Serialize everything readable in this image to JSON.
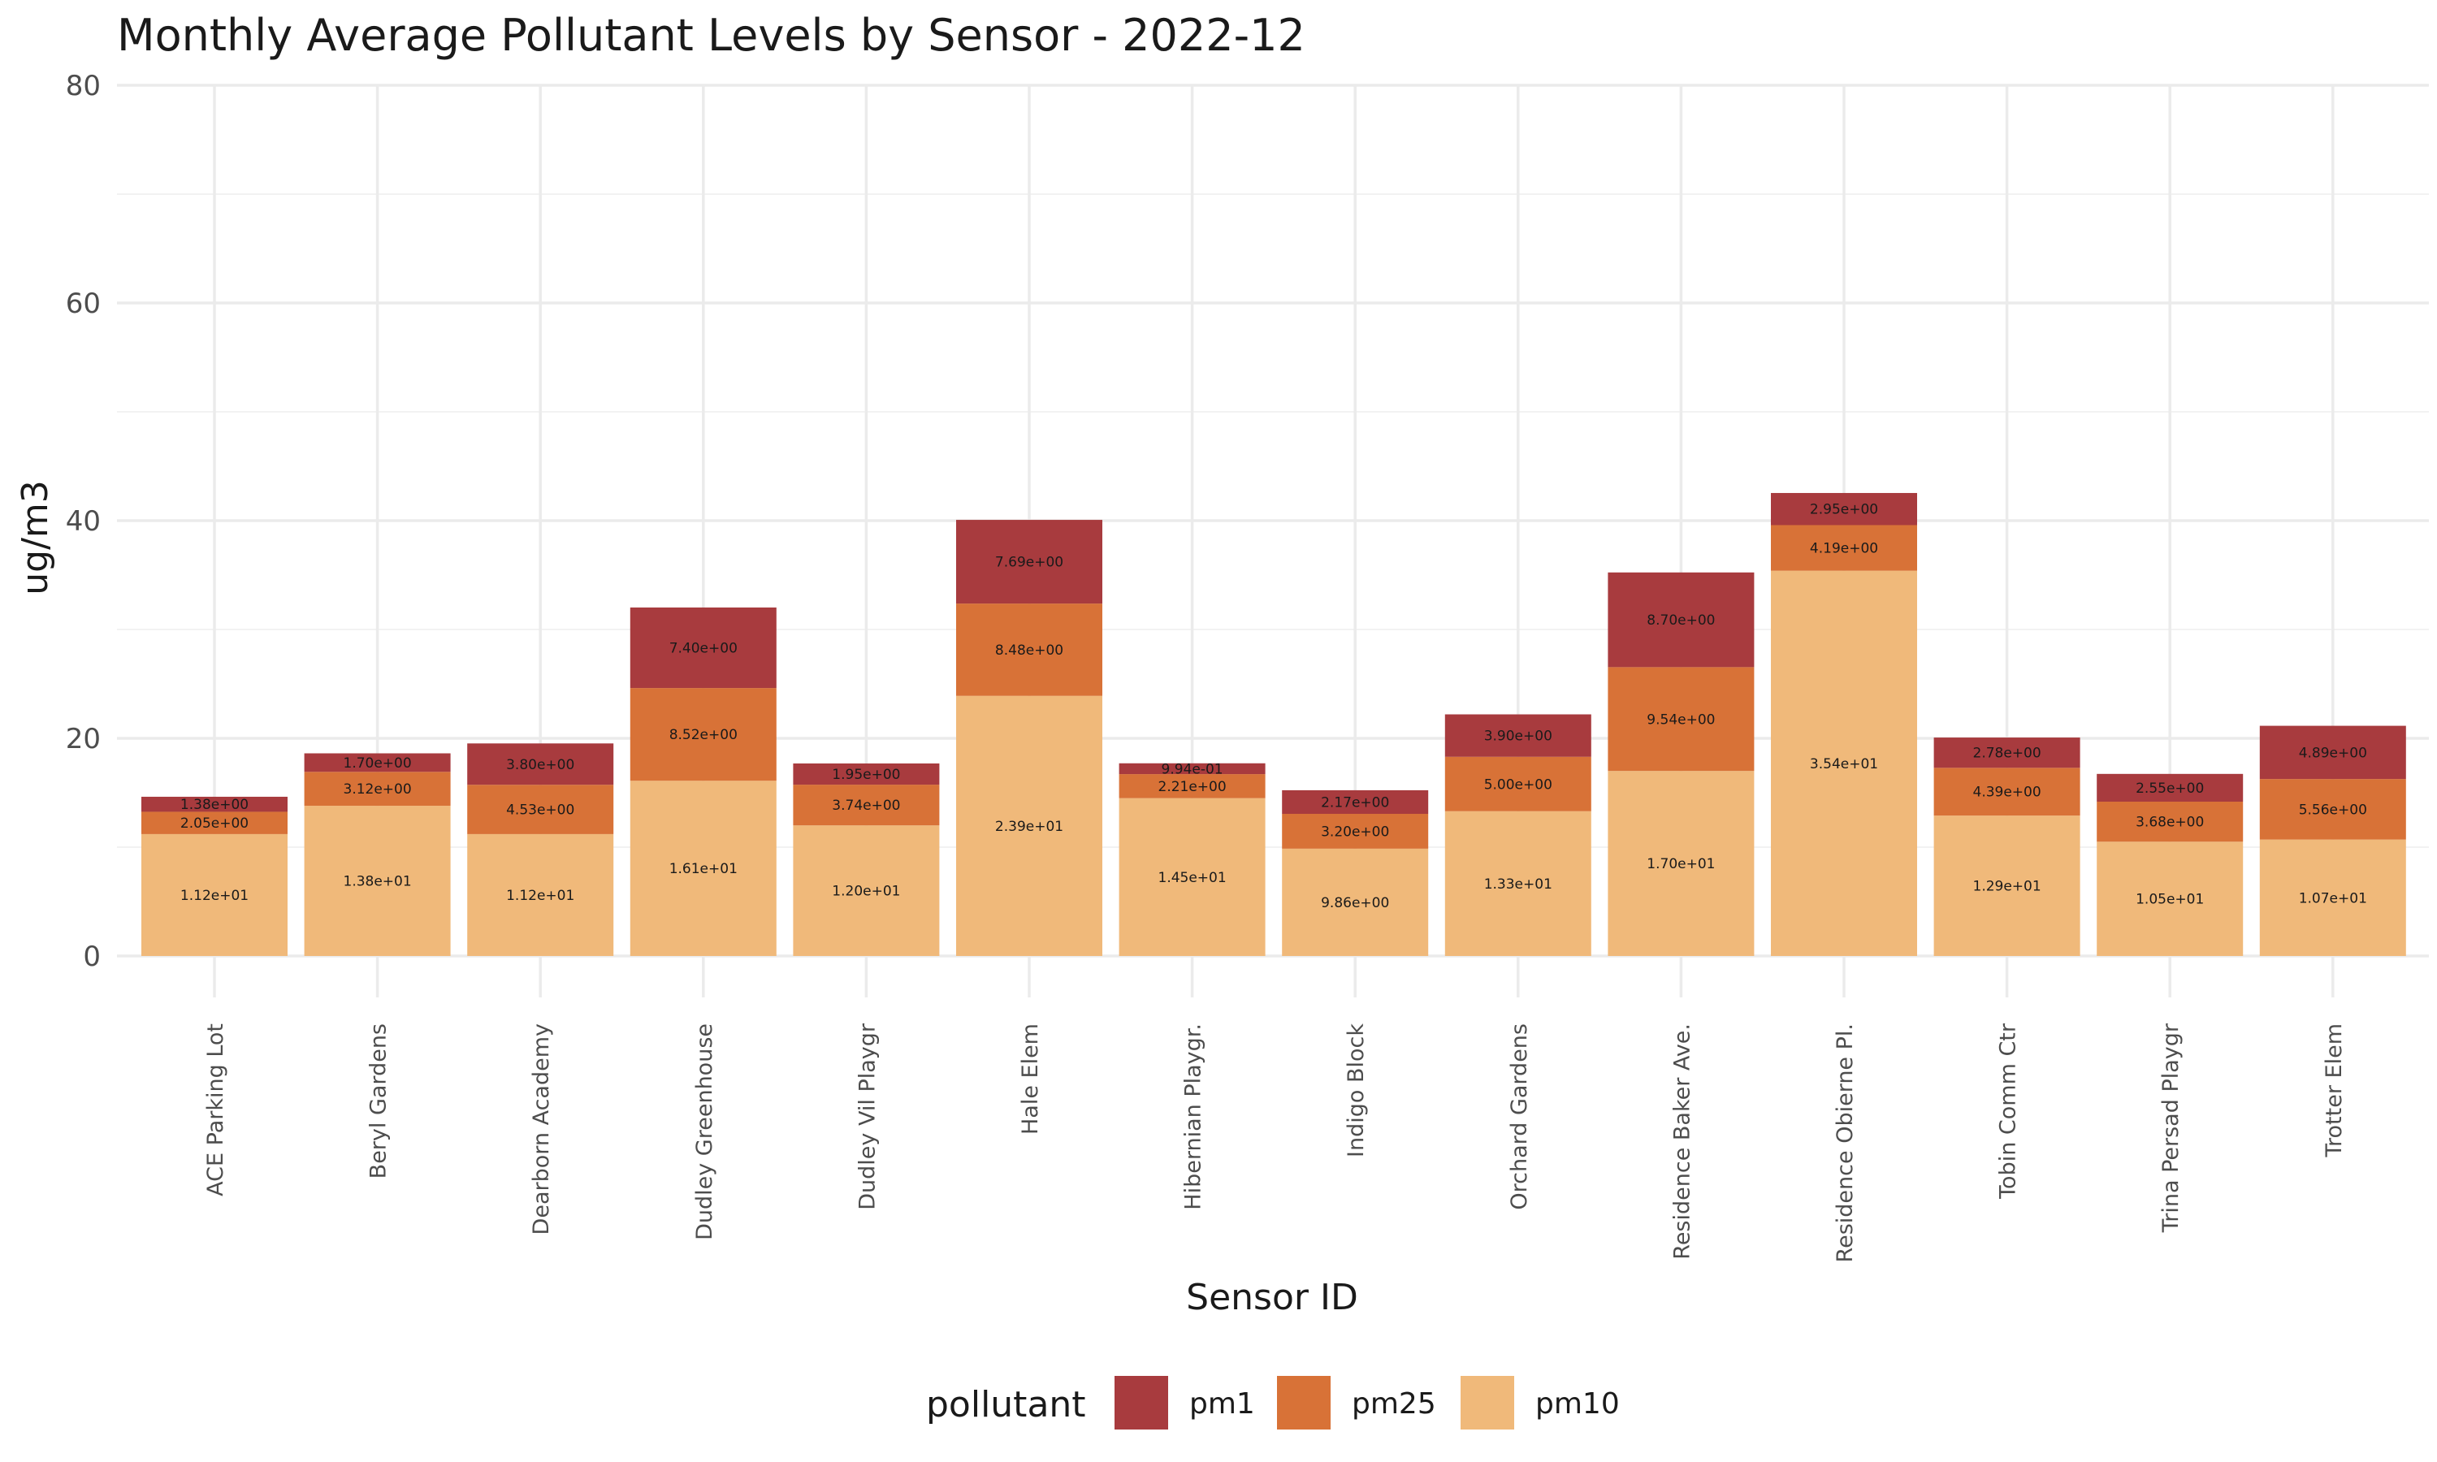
{
  "chart_data": {
    "type": "bar",
    "stacked": true,
    "title": "Monthly Average Pollutant Levels by Sensor - 2022-12",
    "xlabel": "Sensor ID",
    "ylabel": "ug/m3",
    "ylim": [
      0,
      80
    ],
    "yticks": [
      0,
      20,
      40,
      60,
      80
    ],
    "grid": true,
    "legend": {
      "title": "pollutant",
      "position": "bottom"
    },
    "categories": [
      "ACE Parking Lot",
      "Beryl Gardens",
      "Dearborn Academy",
      "Dudley Greenhouse",
      "Dudley Vil Playgr",
      "Hale Elem",
      "Hibernian Playgr.",
      "Indigo Block",
      "Orchard Gardens",
      "Residence Baker Ave.",
      "Residence Obierne Pl.",
      "Tobin Comm Ctr",
      "Trina Persad Playgr",
      "Trotter Elem"
    ],
    "series": [
      {
        "name": "pm10",
        "color": "#f0b97a",
        "values": [
          11.2,
          13.8,
          11.2,
          16.1,
          12.0,
          23.9,
          14.5,
          9.86,
          13.3,
          17.0,
          35.4,
          12.9,
          10.5,
          10.7
        ],
        "labels": [
          "1.12e+01",
          "1.38e+01",
          "1.12e+01",
          "1.61e+01",
          "1.20e+01",
          "2.39e+01",
          "1.45e+01",
          "9.86e+00",
          "1.33e+01",
          "1.70e+01",
          "3.54e+01",
          "1.29e+01",
          "1.05e+01",
          "1.07e+01"
        ]
      },
      {
        "name": "pm25",
        "color": "#d87237",
        "values": [
          2.05,
          3.12,
          4.53,
          8.52,
          3.74,
          8.48,
          2.21,
          3.2,
          5.0,
          9.54,
          4.19,
          4.39,
          3.68,
          5.56
        ],
        "labels": [
          "2.05e+00",
          "3.12e+00",
          "4.53e+00",
          "8.52e+00",
          "3.74e+00",
          "8.48e+00",
          "2.21e+00",
          "3.20e+00",
          "5.00e+00",
          "9.54e+00",
          "4.19e+00",
          "4.39e+00",
          "3.68e+00",
          "5.56e+00"
        ]
      },
      {
        "name": "pm1",
        "color": "#a83b3e",
        "values": [
          1.38,
          1.7,
          3.8,
          7.4,
          1.95,
          7.69,
          0.994,
          2.17,
          3.9,
          8.7,
          2.95,
          2.78,
          2.55,
          4.89
        ],
        "labels": [
          "1.38e+00",
          "1.70e+00",
          "3.80e+00",
          "7.40e+00",
          "1.95e+00",
          "7.69e+00",
          "9.94e-01",
          "2.17e+00",
          "3.90e+00",
          "8.70e+00",
          "2.95e+00",
          "2.78e+00",
          "2.55e+00",
          "4.89e+00"
        ]
      }
    ],
    "legend_order": [
      "pm1",
      "pm25",
      "pm10"
    ]
  }
}
